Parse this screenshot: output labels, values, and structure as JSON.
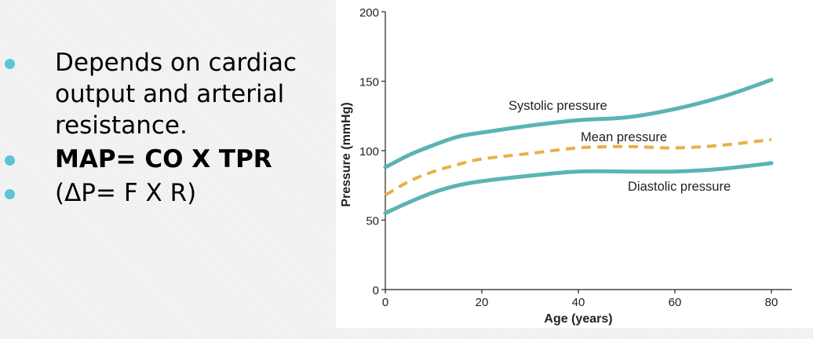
{
  "bullets": [
    {
      "text": "Depends on cardiac output and arterial resistance.",
      "lines": [
        "Depends on cardiac",
        "output and arterial",
        "resistance."
      ],
      "bold": false
    },
    {
      "text": "MAP= CO X TPR",
      "lines": [
        "MAP= CO X TPR"
      ],
      "bold": true
    },
    {
      "text": "(ΔP= F X R)",
      "lines": [
        "(ΔP= F X R)"
      ],
      "bold": false
    }
  ],
  "colors": {
    "bullet": "#5bc4d6",
    "systolic": "#5ab4b3",
    "mean": "#e8b048",
    "diastolic": "#5ab4b3"
  },
  "chart_data": {
    "type": "line",
    "xlabel": "Age (years)",
    "ylabel": "Pressure (mmHg)",
    "xlim": [
      0,
      80
    ],
    "ylim": [
      0,
      200
    ],
    "xticks": [
      0,
      20,
      40,
      60,
      80
    ],
    "yticks": [
      0,
      50,
      100,
      150,
      200
    ],
    "grid": false,
    "series": [
      {
        "name": "Systolic pressure",
        "style": "solid",
        "x": [
          0,
          5,
          10,
          15,
          20,
          30,
          40,
          50,
          60,
          70,
          80
        ],
        "values": [
          88,
          97,
          104,
          110,
          113,
          118,
          122,
          124,
          130,
          139,
          151
        ]
      },
      {
        "name": "Mean pressure",
        "style": "dashed",
        "x": [
          0,
          5,
          10,
          15,
          20,
          30,
          40,
          50,
          60,
          70,
          80
        ],
        "values": [
          68,
          78,
          85,
          90,
          94,
          98,
          102,
          103,
          102,
          104,
          108
        ]
      },
      {
        "name": "Diastolic pressure",
        "style": "solid",
        "x": [
          0,
          5,
          10,
          15,
          20,
          30,
          40,
          50,
          60,
          70,
          80
        ],
        "values": [
          55,
          63,
          70,
          75,
          78,
          82,
          85,
          85,
          85,
          87,
          91
        ]
      }
    ]
  }
}
